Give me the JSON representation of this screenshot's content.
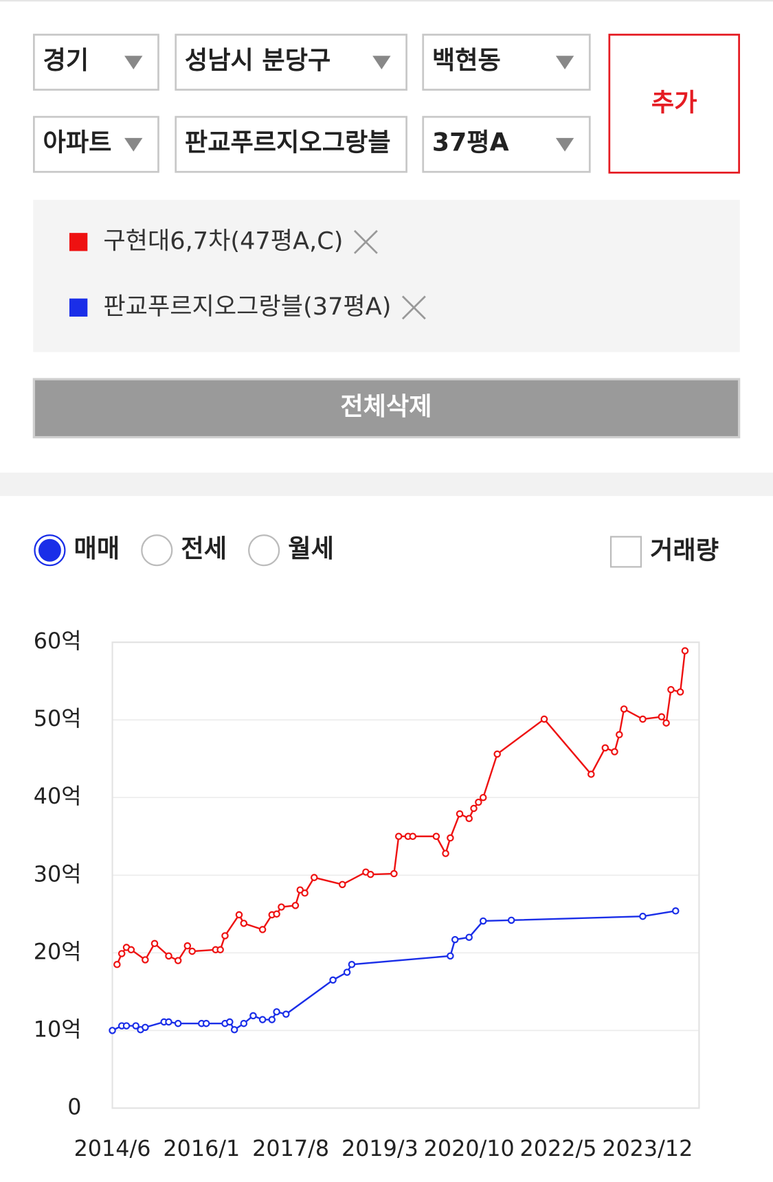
{
  "filters": [
    "경기",
    "성남시 분당구",
    "백현동",
    "아파트",
    "판교푸르지오그랑블",
    "37평A"
  ],
  "add_button": "추가",
  "clear_all": "전체삭제",
  "trade_types": [
    "매매",
    "전세",
    "월세"
  ],
  "volume_toggle": "거래량",
  "chart_data": {
    "type": "line",
    "series": [
      {
        "name": "구현대6,7차(47평A,C)",
        "color": "#ee1111",
        "x": [
          "2014/7",
          "2014/8",
          "2014/9",
          "2014/10",
          "2015/1",
          "2015/3",
          "2015/6",
          "2015/8",
          "2015/10",
          "2015/11",
          "2016/4",
          "2016/5",
          "2016/6",
          "2016/9",
          "2016/10",
          "2017/2",
          "2017/4",
          "2017/5",
          "2017/6",
          "2017/9",
          "2017/10",
          "2017/11",
          "2018/1",
          "2018/7",
          "2018/12",
          "2019/1",
          "2019/6",
          "2019/7",
          "2019/9",
          "2019/10",
          "2020/3",
          "2020/5",
          "2020/6",
          "2020/8",
          "2020/10",
          "2020/11",
          "2020/12",
          "2021/1",
          "2021/4",
          "2022/2",
          "2022/12",
          "2023/3",
          "2023/5",
          "2023/6",
          "2023/7",
          "2023/11",
          "2024/3",
          "2024/4",
          "2024/5",
          "2024/7",
          "2024/8"
        ],
        "values": [
          18.5,
          19.9,
          20.7,
          20.4,
          19.1,
          21.2,
          19.6,
          19.0,
          20.9,
          20.2,
          20.4,
          20.4,
          22.2,
          24.9,
          23.8,
          23.0,
          24.9,
          25.0,
          25.9,
          26.1,
          28.1,
          27.7,
          29.7,
          28.8,
          30.4,
          30.1,
          30.2,
          35.0,
          35.0,
          35.0,
          35.0,
          32.8,
          34.8,
          37.9,
          37.3,
          38.6,
          39.4,
          40.0,
          45.6,
          50.1,
          43.0,
          46.4,
          45.9,
          48.1,
          51.4,
          50.1,
          50.4,
          49.6,
          53.9,
          53.6,
          58.9
        ]
      },
      {
        "name": "판교푸르지오그랑블(37평A)",
        "color": "#1a2ee8",
        "x": [
          "2014/6",
          "2014/8",
          "2014/9",
          "2014/11",
          "2014/12",
          "2015/1",
          "2015/5",
          "2015/6",
          "2015/8",
          "2016/1",
          "2016/2",
          "2016/6",
          "2016/7",
          "2016/8",
          "2016/10",
          "2016/12",
          "2017/2",
          "2017/4",
          "2017/5",
          "2017/7",
          "2018/5",
          "2018/8",
          "2018/9",
          "2020/6",
          "2020/7",
          "2020/10",
          "2021/1",
          "2021/7",
          "2023/11",
          "2024/6"
        ],
        "values": [
          10.0,
          10.6,
          10.6,
          10.6,
          10.1,
          10.4,
          11.1,
          11.1,
          10.9,
          10.9,
          10.9,
          10.9,
          11.1,
          10.1,
          10.9,
          11.9,
          11.4,
          11.4,
          12.4,
          12.1,
          16.5,
          17.5,
          18.5,
          19.6,
          21.7,
          22.0,
          24.1,
          24.2,
          24.7,
          25.4
        ]
      }
    ],
    "xlim": [
      "2014/6",
      "2024/11"
    ],
    "xticks": [
      "2014/6",
      "2016/1",
      "2017/8",
      "2019/3",
      "2020/10",
      "2022/5",
      "2023/12"
    ],
    "ylim": [
      0,
      60
    ],
    "yticks": [
      0,
      {
        "value": 10,
        "label": "10억"
      },
      {
        "value": 20,
        "label": "20억"
      },
      {
        "value": 30,
        "label": "30억"
      },
      {
        "value": 40,
        "label": "40억"
      },
      {
        "value": 50,
        "label": "50억"
      },
      {
        "value": 60,
        "label": "60억"
      }
    ],
    "grid": true
  }
}
